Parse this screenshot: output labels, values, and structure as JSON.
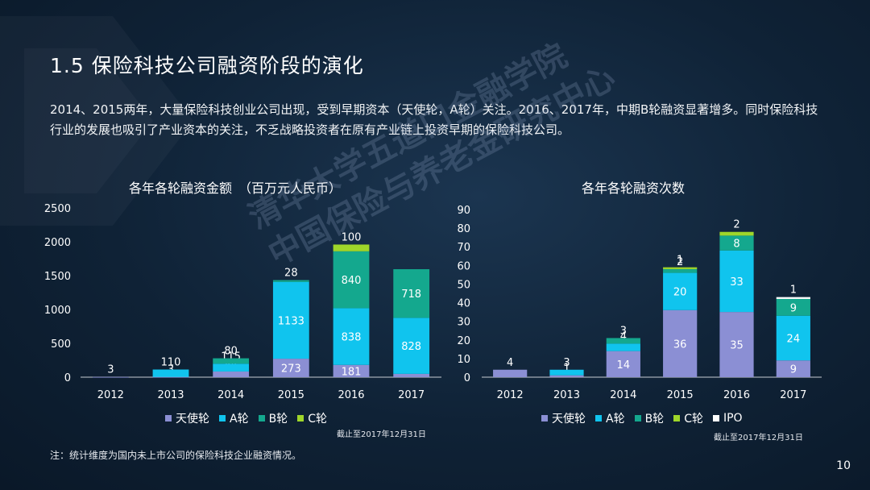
{
  "header": {
    "title": "1.5  保险科技公司融资阶段的演化",
    "intro": "2014、2015两年，大量保险科技创业公司出现，受到早期资本（天使轮，A轮）关注。2016、2017年，中期B轮融资显著增多。同时保险科技行业的发展也吸引了产业资本的关注，不乏战略投资者在原有产业链上投资早期的保险科技公司。"
  },
  "watermark": {
    "line1": "清华大学五道口金融学院",
    "line2": "中国保险与养老金研究中心"
  },
  "footer": {
    "note": "注：统计维度为国内未上市公司的保险科技企业融资情况。",
    "page": "10"
  },
  "colors": {
    "angel": "#8b8fd4",
    "a": "#10c4ee",
    "b": "#14a88e",
    "c": "#9fd62a",
    "ipo": "#ffffff"
  },
  "chart_data": [
    {
      "type": "bar",
      "stacked": true,
      "title": "各年各轮融资金额　（百万元人民币）",
      "categories": [
        "2012",
        "2013",
        "2014",
        "2015",
        "2016",
        "2017"
      ],
      "ylim": [
        0,
        2500
      ],
      "yticks": [
        "0",
        "500",
        "1000",
        "1500",
        "2000",
        "2500"
      ],
      "series": [
        {
          "name": "天使轮",
          "values": [
            3,
            3,
            84,
            273,
            181,
            49
          ]
        },
        {
          "name": "A轮",
          "values": [
            0,
            110,
            115,
            1133,
            838,
            828
          ]
        },
        {
          "name": "B轮",
          "values": [
            0,
            0,
            80,
            28,
            840,
            718
          ]
        },
        {
          "name": "C轮",
          "values": [
            0,
            0,
            0,
            0,
            100,
            0
          ]
        }
      ],
      "cutoff": "截止至2017年12月31日"
    },
    {
      "type": "bar",
      "stacked": true,
      "title": "各年各轮融资次数",
      "categories": [
        "2012",
        "2013",
        "2014",
        "2015",
        "2016",
        "2017"
      ],
      "ylim": [
        0,
        90
      ],
      "yticks": [
        "0",
        "10",
        "20",
        "30",
        "40",
        "50",
        "60",
        "70",
        "80",
        "90"
      ],
      "series": [
        {
          "name": "天使轮",
          "values": [
            4,
            1,
            14,
            36,
            35,
            9
          ]
        },
        {
          "name": "A轮",
          "values": [
            0,
            3,
            4,
            20,
            33,
            24
          ]
        },
        {
          "name": "B轮",
          "values": [
            0,
            0,
            3,
            2,
            8,
            9
          ]
        },
        {
          "name": "C轮",
          "values": [
            0,
            0,
            0,
            1,
            2,
            0
          ]
        },
        {
          "name": "IPO",
          "values": [
            0,
            0,
            0,
            0,
            0,
            1
          ]
        }
      ],
      "cutoff": "截止至2017年12月31日"
    }
  ]
}
